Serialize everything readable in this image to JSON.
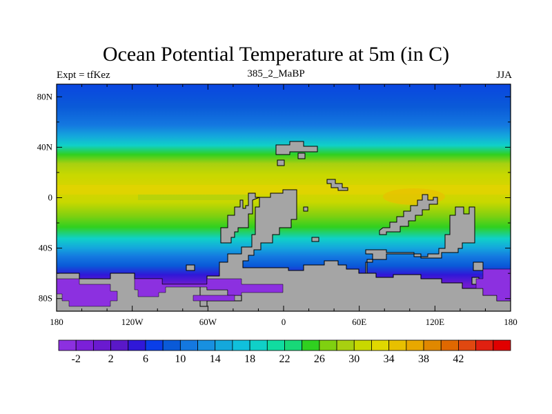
{
  "figure": {
    "title": "Ocean Potential Temperature at 5m (in C)",
    "left_string": "Expt = tfKez",
    "center_string": "385_2_MaBP",
    "right_string": "JJA"
  },
  "axes": {
    "lon_range": [
      -180,
      180
    ],
    "lat_range": [
      -90,
      90
    ],
    "x_ticks": [
      {
        "value": -180,
        "label": "180"
      },
      {
        "value": -120,
        "label": "120W"
      },
      {
        "value": -60,
        "label": "60W"
      },
      {
        "value": 0,
        "label": "0"
      },
      {
        "value": 60,
        "label": "60E"
      },
      {
        "value": 120,
        "label": "120E"
      },
      {
        "value": 180,
        "label": "180"
      }
    ],
    "y_ticks": [
      {
        "value": 80,
        "label": "80N"
      },
      {
        "value": 40,
        "label": "40N"
      },
      {
        "value": 0,
        "label": "0"
      },
      {
        "value": -40,
        "label": "40S"
      },
      {
        "value": -80,
        "label": "80S"
      }
    ]
  },
  "colorbar": {
    "labels": [
      "-2",
      "2",
      "6",
      "10",
      "14",
      "18",
      "22",
      "26",
      "30",
      "34",
      "38",
      "42"
    ],
    "colors": [
      "#8c30e0",
      "#7b20d8",
      "#6a1ad0",
      "#5a18c8",
      "#3018d8",
      "#0a3ee8",
      "#0a5ad8",
      "#1478e0",
      "#1890e0",
      "#14a8dc",
      "#10c0dc",
      "#10d0c8",
      "#10dca0",
      "#18d878",
      "#30d020",
      "#80d010",
      "#a8d010",
      "#c8d800",
      "#e0d800",
      "#e8c000",
      "#e8a800",
      "#e08800",
      "#e06800",
      "#e04810",
      "#e02010",
      "#e00000"
    ]
  },
  "colors": {
    "land": "#a5a5a5",
    "land_outline": "#000000"
  }
}
